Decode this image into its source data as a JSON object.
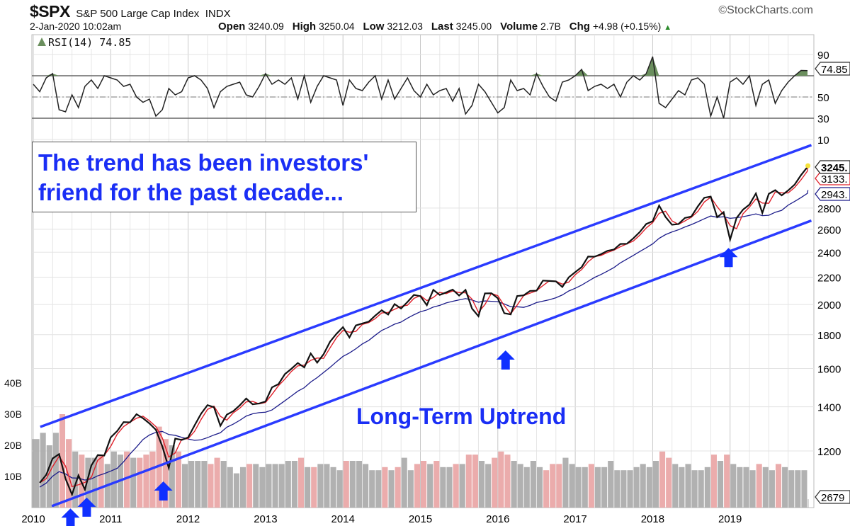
{
  "header": {
    "symbol": "$SPX",
    "name": "S&P 500 Large Cap Index",
    "exchange": "INDX",
    "copyright": "©StockCharts.com",
    "datetime": "2-Jan-2020 10:02am",
    "open_label": "Open",
    "open": "3240.09",
    "high_label": "High",
    "high": "3250.04",
    "low_label": "Low",
    "low": "3212.03",
    "last_label": "Last",
    "last": "3245.00",
    "volume_label": "Volume",
    "volume": "2.7B",
    "chg_label": "Chg",
    "chg": "+4.98 (+0.15%)",
    "chg_icon": "triangle-up"
  },
  "annotations": {
    "note_line1": "The trend has been investors'",
    "note_line2": "friend for the past decade...",
    "uptrend": "Long-Term Uptrend"
  },
  "colors": {
    "price": "#111111",
    "ma_short": "#e0202a",
    "ma_long": "#1c1c8a",
    "trendline": "#2a3bff",
    "arrow": "#1030ff",
    "text": "#1a2ef5",
    "vol_up": "#a8a8a8",
    "vol_down": "#e9a3a3",
    "rsi_fill": "#6b8f5e"
  },
  "chart_data": {
    "type": "line",
    "xlabel": "",
    "ylabel": "",
    "x_ticks": [
      "2010",
      "2011",
      "2012",
      "2013",
      "2014",
      "2015",
      "2016",
      "2017",
      "2018",
      "2019"
    ],
    "price_scale": "log",
    "price_ticks": [
      1200,
      1400,
      1600,
      1800,
      2000,
      2200,
      2400,
      2600,
      2800
    ],
    "price_value_labels": {
      "last": "3245.",
      "ma_short": "3133.",
      "ma_long": "2943.",
      "volume": "2679"
    },
    "rsi": {
      "label": "RSI(14) 74.85",
      "value_label": "74.85",
      "ticks": [
        10,
        30,
        50,
        70,
        90
      ],
      "ylim": [
        10,
        90
      ],
      "overbought": 70,
      "oversold": 30,
      "values": [
        62,
        55,
        68,
        72,
        38,
        36,
        52,
        40,
        60,
        66,
        58,
        70,
        68,
        66,
        60,
        62,
        50,
        45,
        48,
        32,
        38,
        58,
        52,
        55,
        68,
        70,
        66,
        58,
        40,
        55,
        60,
        62,
        64,
        52,
        50,
        60,
        72,
        62,
        66,
        62,
        68,
        48,
        70,
        45,
        60,
        70,
        68,
        66,
        42,
        66,
        58,
        56,
        64,
        70,
        48,
        66,
        48,
        58,
        68,
        56,
        50,
        62,
        52,
        56,
        58,
        46,
        58,
        34,
        42,
        62,
        55,
        45,
        35,
        40,
        66,
        56,
        58,
        52,
        72,
        60,
        50,
        46,
        64,
        66,
        70,
        76,
        56,
        60,
        62,
        58,
        62,
        50,
        64,
        70,
        66,
        72,
        88,
        44,
        40,
        48,
        56,
        52,
        66,
        68,
        62,
        32,
        50,
        30,
        64,
        68,
        62,
        70,
        42,
        62,
        66,
        44,
        56,
        64,
        70,
        75,
        74.85
      ]
    },
    "volume": {
      "ticks": [
        "10B",
        "20B",
        "30B",
        "40B"
      ],
      "unit": "B",
      "values": [
        22,
        24,
        20,
        24,
        30,
        22,
        18,
        17,
        16,
        16,
        17,
        14,
        18,
        17,
        18,
        16,
        16,
        17,
        18,
        26,
        22,
        20,
        18,
        14,
        15,
        15,
        15,
        14,
        16,
        15,
        13,
        11,
        13,
        14,
        14,
        13,
        14,
        14,
        14,
        15,
        15,
        16,
        13,
        13,
        14,
        14,
        13,
        12,
        15,
        15,
        15,
        14,
        12,
        12,
        13,
        12,
        13,
        16,
        12,
        14,
        15,
        14,
        15,
        13,
        13,
        14,
        14,
        17,
        17,
        15,
        14,
        16,
        18,
        17,
        15,
        14,
        13,
        15,
        13,
        12,
        14,
        14,
        16,
        14,
        13,
        13,
        14,
        13,
        13,
        15,
        12,
        12,
        12,
        13,
        14,
        13,
        15,
        18,
        16,
        14,
        13,
        14,
        12,
        12,
        13,
        17,
        15,
        17,
        14,
        13,
        13,
        12,
        14,
        13,
        12,
        14,
        13,
        12,
        12,
        12,
        2.7
      ]
    },
    "price": {
      "dates": [
        "2010-01",
        "2010-02",
        "2010-03",
        "2010-04",
        "2010-05",
        "2010-06",
        "2010-07",
        "2010-08",
        "2010-09",
        "2010-10",
        "2010-11",
        "2010-12",
        "2011-01",
        "2011-02",
        "2011-03",
        "2011-04",
        "2011-05",
        "2011-06",
        "2011-07",
        "2011-08",
        "2011-09",
        "2011-10",
        "2011-11",
        "2011-12",
        "2012-01",
        "2012-02",
        "2012-03",
        "2012-04",
        "2012-05",
        "2012-06",
        "2012-07",
        "2012-08",
        "2012-09",
        "2012-10",
        "2012-11",
        "2012-12",
        "2013-01",
        "2013-02",
        "2013-03",
        "2013-04",
        "2013-05",
        "2013-06",
        "2013-07",
        "2013-08",
        "2013-09",
        "2013-10",
        "2013-11",
        "2013-12",
        "2014-01",
        "2014-02",
        "2014-03",
        "2014-04",
        "2014-05",
        "2014-06",
        "2014-07",
        "2014-08",
        "2014-09",
        "2014-10",
        "2014-11",
        "2014-12",
        "2015-01",
        "2015-02",
        "2015-03",
        "2015-04",
        "2015-05",
        "2015-06",
        "2015-07",
        "2015-08",
        "2015-09",
        "2015-10",
        "2015-11",
        "2015-12",
        "2016-01",
        "2016-02",
        "2016-03",
        "2016-04",
        "2016-05",
        "2016-06",
        "2016-07",
        "2016-08",
        "2016-09",
        "2016-10",
        "2016-11",
        "2016-12",
        "2017-01",
        "2017-02",
        "2017-03",
        "2017-04",
        "2017-05",
        "2017-06",
        "2017-07",
        "2017-08",
        "2017-09",
        "2017-10",
        "2017-11",
        "2017-12",
        "2018-01",
        "2018-02",
        "2018-03",
        "2018-04",
        "2018-05",
        "2018-06",
        "2018-07",
        "2018-08",
        "2018-09",
        "2018-10",
        "2018-11",
        "2018-12",
        "2019-01",
        "2019-02",
        "2019-03",
        "2019-04",
        "2019-05",
        "2019-06",
        "2019-07",
        "2019-08",
        "2019-09",
        "2019-10",
        "2019-11",
        "2019-12",
        "2020-01-02"
      ],
      "close": [
        1074,
        1104,
        1169,
        1187,
        1089,
        1031,
        1102,
        1049,
        1141,
        1183,
        1181,
        1258,
        1286,
        1327,
        1326,
        1364,
        1345,
        1321,
        1292,
        1219,
        1131,
        1253,
        1247,
        1258,
        1312,
        1366,
        1408,
        1398,
        1310,
        1362,
        1379,
        1407,
        1441,
        1412,
        1416,
        1426,
        1498,
        1515,
        1569,
        1598,
        1631,
        1606,
        1686,
        1633,
        1682,
        1757,
        1806,
        1848,
        1783,
        1859,
        1872,
        1884,
        1924,
        1960,
        1931,
        2003,
        1972,
        2018,
        2068,
        2059,
        1995,
        2105,
        2068,
        2086,
        2107,
        2063,
        2104,
        1972,
        1920,
        2079,
        2080,
        2044,
        1940,
        1932,
        2060,
        2065,
        2097,
        2099,
        2174,
        2171,
        2168,
        2126,
        2199,
        2239,
        2279,
        2364,
        2363,
        2384,
        2412,
        2423,
        2470,
        2472,
        2519,
        2575,
        2648,
        2674,
        2824,
        2714,
        2641,
        2648,
        2705,
        2718,
        2816,
        2902,
        2914,
        2712,
        2760,
        2507,
        2704,
        2784,
        2834,
        2946,
        2752,
        2942,
        2980,
        2926,
        2977,
        3038,
        3141,
        3231,
        3245
      ]
    },
    "trendlines": [
      {
        "name": "upper",
        "from": {
          "date": 2010.09,
          "price": 1305
        },
        "to": {
          "date": 2020.05,
          "price": 3487
        }
      },
      {
        "name": "lower",
        "from": {
          "date": 2010.24,
          "price": 990
        },
        "to": {
          "date": 2020.05,
          "price": 2680
        }
      }
    ],
    "arrows": [
      {
        "date": 2010.48,
        "price": 982
      },
      {
        "date": 2010.69,
        "price": 1020
      },
      {
        "date": 2011.68,
        "price": 1079
      },
      {
        "date": 2016.1,
        "price": 1704
      },
      {
        "date": 2018.98,
        "price": 2436
      }
    ]
  }
}
